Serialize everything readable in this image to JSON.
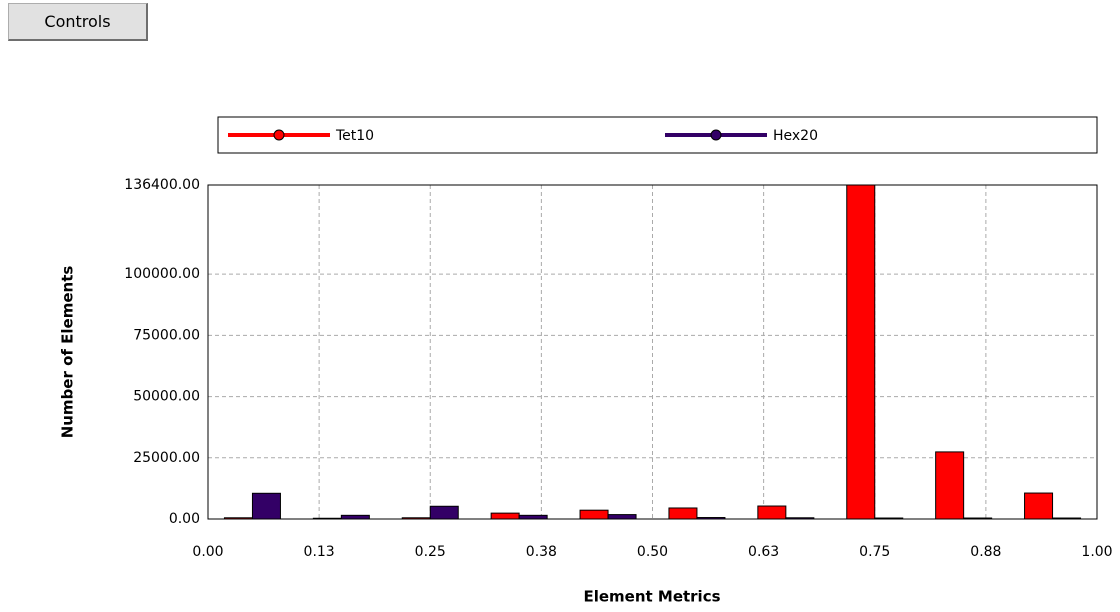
{
  "button": "Controls",
  "chart_data": {
    "type": "bar",
    "xlabel": "Element Metrics",
    "ylabel": "Number of Elements",
    "x": [
      0.05,
      0.15,
      0.25,
      0.35,
      0.45,
      0.55,
      0.65,
      0.75,
      0.85,
      0.95
    ],
    "series": [
      {
        "name": "Tet10",
        "color": "#ff0000",
        "values": [
          500,
          300,
          500,
          2400,
          3600,
          4500,
          5300,
          136400,
          27400,
          10600
        ]
      },
      {
        "name": "Hex20",
        "color": "#330066",
        "values": [
          10500,
          1500,
          5200,
          1500,
          1800,
          600,
          500,
          400,
          400,
          400
        ]
      }
    ],
    "xlim": [
      0,
      1
    ],
    "xticks": [
      {
        "value": 0,
        "label": "0.00"
      },
      {
        "value": 0.125,
        "label": "0.13"
      },
      {
        "value": 0.25,
        "label": "0.25"
      },
      {
        "value": 0.375,
        "label": "0.38"
      },
      {
        "value": 0.5,
        "label": "0.50"
      },
      {
        "value": 0.625,
        "label": "0.63"
      },
      {
        "value": 0.75,
        "label": "0.75"
      },
      {
        "value": 0.875,
        "label": "0.88"
      },
      {
        "value": 1,
        "label": "1.00"
      }
    ],
    "ylim": [
      0,
      136400
    ],
    "yticks": [
      {
        "value": 0,
        "label": "0.00"
      },
      {
        "value": 25000,
        "label": "25000.00"
      },
      {
        "value": 50000,
        "label": "50000.00"
      },
      {
        "value": 75000,
        "label": "75000.00"
      },
      {
        "value": 100000,
        "label": "100000.00"
      },
      {
        "value": 136400,
        "label": "136400.00"
      }
    ],
    "grid": true,
    "legend": "top"
  }
}
